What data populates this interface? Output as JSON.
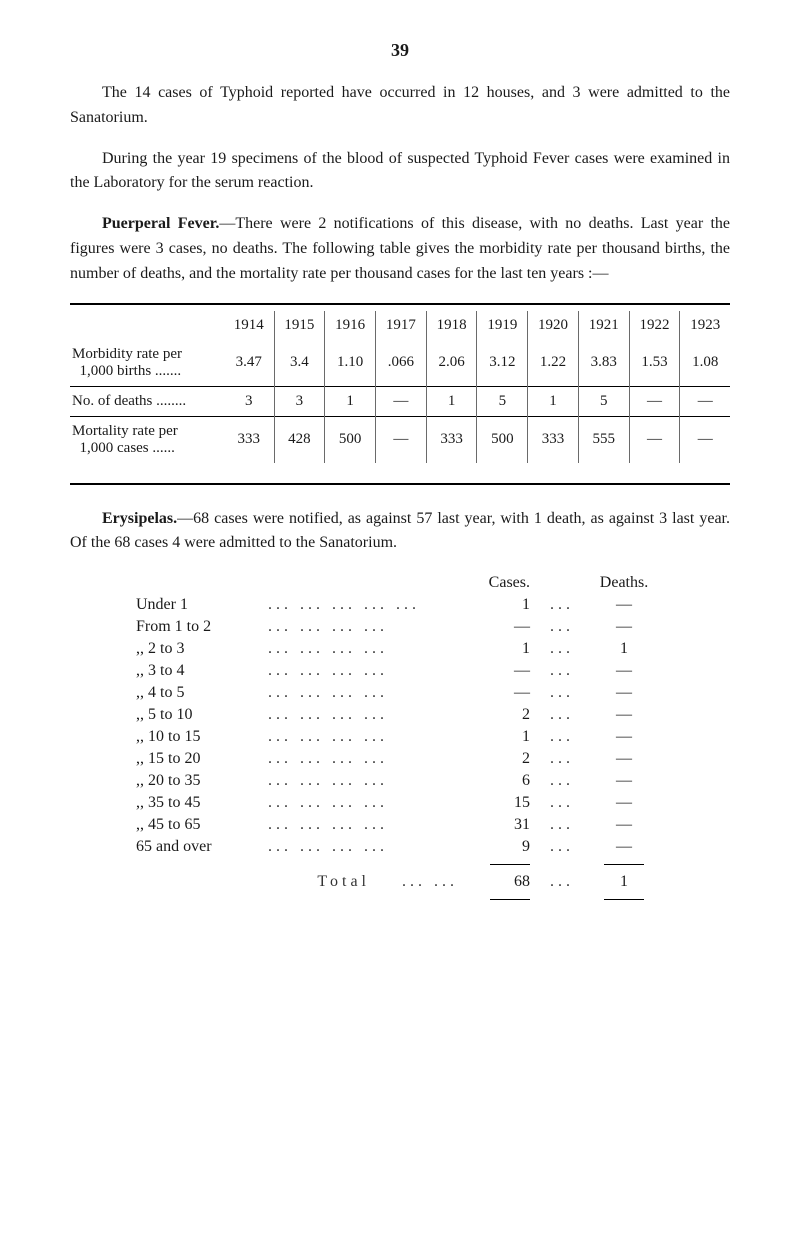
{
  "page_number": "39",
  "para1": "The 14 cases of Typhoid reported have occurred in 12 houses, and 3 were admitted to the Sanatorium.",
  "para2": "During the year 19 specimens of the blood of suspected Typhoid Fever cases were examined in the Laboratory for the serum reaction.",
  "puerperal_lead_bold": "Puerperal Fever.",
  "puerperal_lead_rest": "—There were 2 notifications of this disease, with no deaths. Last year the figures were 3 cases, no deaths. The following table gives the morbidity rate per thousand births, the number of deaths, and the mortality rate per thousand cases for the last ten years :—",
  "morbidity_table": {
    "years": [
      "1914",
      "1915",
      "1916",
      "1917",
      "1918",
      "1919",
      "1920",
      "1921",
      "1922",
      "1923"
    ],
    "rows": [
      {
        "label_line1": "Morbidity rate per",
        "label_line2": "1,000 births .......",
        "values": [
          "3.47",
          "3.4",
          "1.10",
          ".066",
          "2.06",
          "3.12",
          "1.22",
          "3.83",
          "1.53",
          "1.08"
        ]
      },
      {
        "label_line1": "No. of deaths ........",
        "label_line2": "",
        "values": [
          "3",
          "3",
          "1",
          "—",
          "1",
          "5",
          "1",
          "5",
          "—",
          "—"
        ]
      },
      {
        "label_line1": "Mortality rate per",
        "label_line2": "1,000 cases ......",
        "values": [
          "333",
          "428",
          "500",
          "—",
          "333",
          "500",
          "333",
          "555",
          "—",
          "—"
        ]
      }
    ]
  },
  "erysipelas_lead_bold": "Erysipelas.",
  "erysipelas_lead_rest": "—68 cases were notified, as against 57 last year, with 1 death, as against 3 last year. Of the 68 cases 4 were admitted to the Sanatorium.",
  "cases_table": {
    "head_cases": "Cases.",
    "head_deaths": "Deaths.",
    "rows": [
      {
        "label": "Under 1",
        "dots": "...   ...   ...   ...   ...",
        "cases": "1",
        "mid": "...",
        "deaths": "—"
      },
      {
        "label": "From  1 to  2",
        "dots": "...   ...   ...   ...",
        "cases": "—",
        "mid": "...",
        "deaths": "—"
      },
      {
        "label": ",,    2 to  3",
        "dots": "...   ...   ...   ...",
        "cases": "1",
        "mid": "...",
        "deaths": "1"
      },
      {
        "label": ",,    3 to  4",
        "dots": "...   ...   ...   ...",
        "cases": "—",
        "mid": "...",
        "deaths": "—"
      },
      {
        "label": ",,    4 to  5",
        "dots": "...   ...   ...   ...",
        "cases": "—",
        "mid": "...",
        "deaths": "—"
      },
      {
        "label": ",,    5 to 10",
        "dots": "...   ...   ...   ...",
        "cases": "2",
        "mid": "...",
        "deaths": "—"
      },
      {
        "label": ",,   10 to 15",
        "dots": "...   ...   ...   ...",
        "cases": "1",
        "mid": "...",
        "deaths": "—"
      },
      {
        "label": ",,   15 to 20",
        "dots": "...   ...   ...   ...",
        "cases": "2",
        "mid": "...",
        "deaths": "—"
      },
      {
        "label": ",,   20 to 35",
        "dots": "...   ...   ...   ...",
        "cases": "6",
        "mid": "...",
        "deaths": "—"
      },
      {
        "label": ",,   35 to 45",
        "dots": "...   ...   ...   ...",
        "cases": "15",
        "mid": "...",
        "deaths": "—"
      },
      {
        "label": ",,   45 to 65",
        "dots": "...   ...   ...   ...",
        "cases": "31",
        "mid": "...",
        "deaths": "—"
      },
      {
        "label": "65 and over",
        "dots": "...   ...   ...   ...",
        "cases": "9",
        "mid": "...",
        "deaths": "—"
      }
    ],
    "total_label": "Total",
    "total_dots": "...   ...",
    "total_cases": "68",
    "total_mid": "...",
    "total_deaths": "1"
  }
}
